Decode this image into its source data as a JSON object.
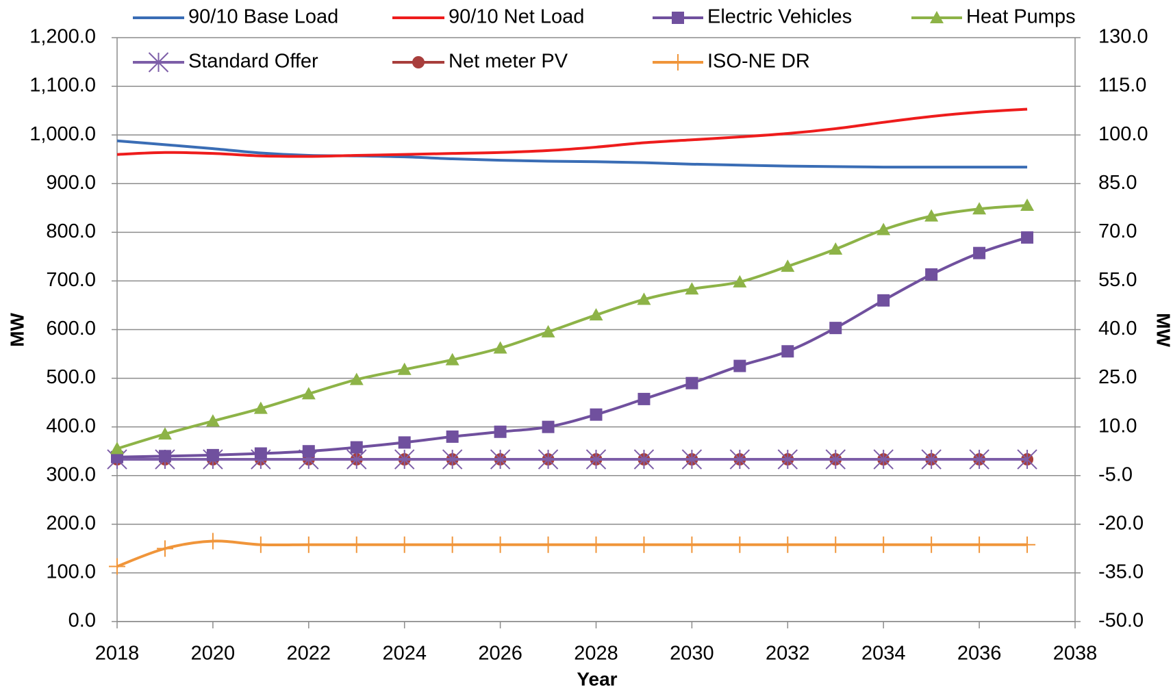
{
  "chart_data": {
    "type": "line",
    "x_label": "Year",
    "y_label": "MW",
    "y2_label": "MW",
    "x": [
      2018,
      2019,
      2020,
      2021,
      2022,
      2023,
      2024,
      2025,
      2026,
      2027,
      2028,
      2029,
      2030,
      2031,
      2032,
      2033,
      2034,
      2035,
      2036,
      2037
    ],
    "xlim": [
      2018,
      2038
    ],
    "xticks": [
      2018,
      2020,
      2022,
      2024,
      2026,
      2028,
      2030,
      2032,
      2034,
      2036,
      2038
    ],
    "ylim": [
      0,
      1200
    ],
    "yticks": [
      {
        "value": 0,
        "label": "0.0"
      },
      {
        "value": 100,
        "label": "100.0"
      },
      {
        "value": 200,
        "label": "200.0"
      },
      {
        "value": 300,
        "label": "300.0"
      },
      {
        "value": 400,
        "label": "400.0"
      },
      {
        "value": 500,
        "label": "500.0"
      },
      {
        "value": 600,
        "label": "600.0"
      },
      {
        "value": 700,
        "label": "700.0"
      },
      {
        "value": 800,
        "label": "800.0"
      },
      {
        "value": 900,
        "label": "900.0"
      },
      {
        "value": 1000,
        "label": "1,000.0"
      },
      {
        "value": 1100,
        "label": "1,100.0"
      },
      {
        "value": 1200,
        "label": "1,200.0"
      }
    ],
    "y2lim": [
      -50,
      130
    ],
    "y2ticks": [
      {
        "value": -50,
        "label": "-50.0"
      },
      {
        "value": -35,
        "label": "-35.0"
      },
      {
        "value": -20,
        "label": "-20.0"
      },
      {
        "value": -5,
        "label": "-5.0"
      },
      {
        "value": 10,
        "label": "10.0"
      },
      {
        "value": 25,
        "label": "25.0"
      },
      {
        "value": 40,
        "label": "40.0"
      },
      {
        "value": 55,
        "label": "55.0"
      },
      {
        "value": 70,
        "label": "70.0"
      },
      {
        "value": 85,
        "label": "85.0"
      },
      {
        "value": 100,
        "label": "100.0"
      },
      {
        "value": 115,
        "label": "115.0"
      },
      {
        "value": 130,
        "label": "130.0"
      }
    ],
    "grid": true,
    "legend": "top",
    "series": [
      {
        "name": "90/10 Base Load",
        "color": "#3a6db5",
        "marker": "none",
        "values": [
          988,
          980,
          972,
          963,
          958,
          957,
          955,
          951,
          948,
          946,
          945,
          943,
          940,
          938,
          936,
          935,
          934,
          934,
          934,
          934
        ]
      },
      {
        "name": "90/10 Net Load",
        "color": "#ee1c1c",
        "marker": "none",
        "values": [
          960,
          964,
          962,
          957,
          956,
          958,
          960,
          962,
          964,
          968,
          975,
          984,
          990,
          996,
          1003,
          1013,
          1026,
          1038,
          1047,
          1053
        ]
      },
      {
        "name": "Electric Vehicles",
        "color": "#70509e",
        "marker": "square",
        "axis": "y2",
        "values": [
          0.7,
          1.0,
          1.3,
          1.8,
          2.5,
          3.7,
          5.2,
          7.0,
          8.5,
          10.0,
          13.8,
          18.6,
          23.5,
          28.8,
          33.3,
          40.5,
          49.0,
          57.0,
          63.6,
          68.4
        ]
      },
      {
        "name": "Heat Pumps",
        "color": "#8db347",
        "marker": "triangle",
        "axis": "y2",
        "values": [
          3.3,
          7.8,
          11.8,
          15.7,
          20.2,
          24.6,
          27.7,
          30.7,
          34.3,
          39.3,
          44.5,
          49.3,
          52.5,
          54.7,
          59.5,
          64.8,
          70.8,
          75.0,
          77.2,
          78.3
        ]
      },
      {
        "name": "Standard Offer",
        "color": "#7d5ea8",
        "marker": "asterisk",
        "axis": "y2",
        "values": [
          0,
          0,
          0,
          0,
          0,
          0,
          0,
          0,
          0,
          0,
          0,
          0,
          0,
          0,
          0,
          0,
          0,
          0,
          0,
          0
        ]
      },
      {
        "name": "Net meter PV",
        "color": "#a83e3c",
        "marker": "circle",
        "axis": "y2",
        "values": [
          0,
          0,
          0,
          0,
          0,
          0,
          0,
          0,
          0,
          0,
          0,
          0,
          0,
          0,
          0,
          0,
          0,
          0,
          0,
          0
        ]
      },
      {
        "name": "ISO-NE DR",
        "color": "#f0953a",
        "marker": "plus",
        "axis": "y2",
        "values": [
          -33.0,
          -27.5,
          -25.2,
          -26.3,
          -26.3,
          -26.3,
          -26.3,
          -26.3,
          -26.3,
          -26.3,
          -26.3,
          -26.3,
          -26.3,
          -26.3,
          -26.3,
          -26.3,
          -26.3,
          -26.3,
          -26.3,
          -26.3
        ]
      }
    ]
  }
}
